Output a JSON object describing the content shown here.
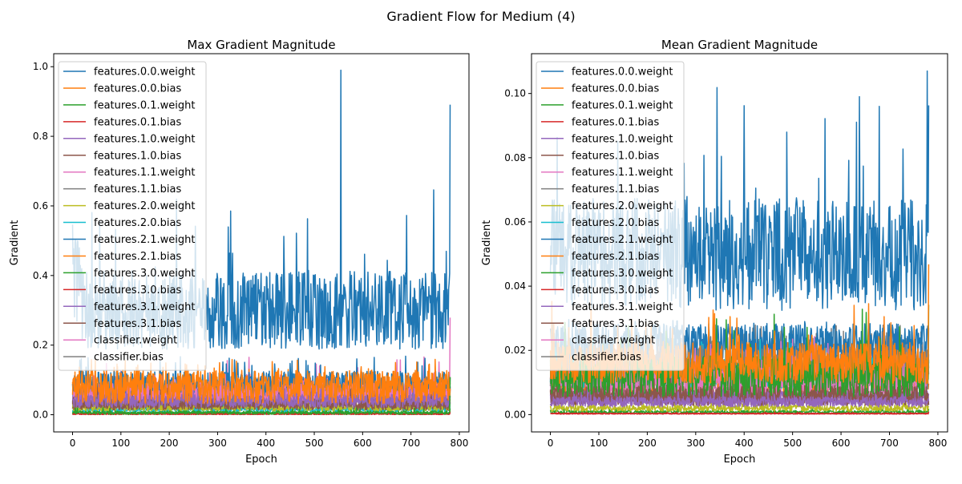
{
  "figure_title": "Gradient Flow for Medium (4)",
  "colors": {
    "palette": [
      "#1f77b4",
      "#ff7f0e",
      "#2ca02c",
      "#d62728",
      "#9467bd",
      "#8c564b",
      "#e377c2",
      "#7f7f7f",
      "#bcbd22",
      "#17becf"
    ]
  },
  "chart_data": [
    {
      "type": "line",
      "title": "Max Gradient Magnitude",
      "xlabel": "Epoch",
      "ylabel": "Gradient",
      "xlim": [
        -39,
        820
      ],
      "ylim": [
        -0.0494,
        1.0374
      ],
      "xticks": [
        0,
        100,
        200,
        300,
        400,
        500,
        600,
        700,
        800
      ],
      "xtick_labels": [
        "0",
        "100",
        "200",
        "300",
        "400",
        "500",
        "600",
        "700",
        "800"
      ],
      "yticks": [
        0.0,
        0.2,
        0.4,
        0.6,
        0.8,
        1.0
      ],
      "ytick_labels": [
        "0.0",
        "0.2",
        "0.4",
        "0.6",
        "0.8",
        "1.0"
      ],
      "grid": false,
      "legend_position": "upper-left",
      "x": {
        "start": 0,
        "end": 781
      },
      "series": [
        {
          "name": "features.0.0.weight",
          "level": 0.3,
          "spread": 0.07,
          "max": 0.99,
          "peak_at": 555
        },
        {
          "name": "features.0.0.bias",
          "level": 0.08,
          "spread": 0.03,
          "max": 0.16
        },
        {
          "name": "features.0.1.weight",
          "level": 0.006,
          "spread": 0.003,
          "max": 0.12
        },
        {
          "name": "features.0.1.bias",
          "level": 0.002,
          "spread": 0.001,
          "max": 0.01
        },
        {
          "name": "features.1.0.weight",
          "level": 0.04,
          "spread": 0.012,
          "max": 0.09
        },
        {
          "name": "features.1.0.bias",
          "level": 0.03,
          "spread": 0.01,
          "max": 0.08
        },
        {
          "name": "features.1.1.weight",
          "level": 0.06,
          "spread": 0.02,
          "max": 0.12
        },
        {
          "name": "features.1.1.bias",
          "level": 0.04,
          "spread": 0.012,
          "max": 0.09
        },
        {
          "name": "features.2.0.weight",
          "level": 0.02,
          "spread": 0.006,
          "max": 0.05
        },
        {
          "name": "features.2.0.bias",
          "level": 0.015,
          "spread": 0.005,
          "max": 0.04
        },
        {
          "name": "features.2.1.weight",
          "level": 0.085,
          "spread": 0.025,
          "max": 0.17
        },
        {
          "name": "features.2.1.bias",
          "level": 0.07,
          "spread": 0.025,
          "max": 0.14
        },
        {
          "name": "features.3.0.weight",
          "level": 0.004,
          "spread": 0.002,
          "max": 0.02
        },
        {
          "name": "features.3.0.bias",
          "level": 0.002,
          "spread": 0.001,
          "max": 0.01
        },
        {
          "name": "features.3.1.weight",
          "level": 0.05,
          "spread": 0.015,
          "max": 0.1
        },
        {
          "name": "features.3.1.bias",
          "level": 0.025,
          "spread": 0.008,
          "max": 0.06
        },
        {
          "name": "classifier.weight",
          "level": 0.065,
          "spread": 0.02,
          "max": 0.31
        },
        {
          "name": "classifier.bias",
          "level": 0.035,
          "spread": 0.012,
          "max": 0.12
        }
      ]
    },
    {
      "type": "line",
      "title": "Mean Gradient Magnitude",
      "xlabel": "Epoch",
      "ylabel": "Gradient",
      "xlim": [
        -39,
        820
      ],
      "ylim": [
        -0.0054,
        0.1124
      ],
      "xticks": [
        0,
        100,
        200,
        300,
        400,
        500,
        600,
        700,
        800
      ],
      "xtick_labels": [
        "0",
        "100",
        "200",
        "300",
        "400",
        "500",
        "600",
        "700",
        "800"
      ],
      "yticks": [
        0.0,
        0.02,
        0.04,
        0.06,
        0.08,
        0.1
      ],
      "ytick_labels": [
        "0.00",
        "0.02",
        "0.04",
        "0.06",
        "0.08",
        "0.10"
      ],
      "grid": false,
      "legend_position": "upper-left",
      "x": {
        "start": 0,
        "end": 781
      },
      "series": [
        {
          "name": "features.0.0.weight",
          "level": 0.05,
          "spread": 0.011,
          "max": 0.107,
          "peak_at": 778
        },
        {
          "name": "features.0.0.bias",
          "level": 0.016,
          "spread": 0.004,
          "max": 0.052
        },
        {
          "name": "features.0.1.weight",
          "level": 0.012,
          "spread": 0.004,
          "max": 0.038
        },
        {
          "name": "features.0.1.bias",
          "level": 0.0003,
          "spread": 0.0001,
          "max": 0.001
        },
        {
          "name": "features.1.0.weight",
          "level": 0.004,
          "spread": 0.001,
          "max": 0.008
        },
        {
          "name": "features.1.0.bias",
          "level": 0.006,
          "spread": 0.002,
          "max": 0.012
        },
        {
          "name": "features.1.1.weight",
          "level": 0.011,
          "spread": 0.003,
          "max": 0.03
        },
        {
          "name": "features.1.1.bias",
          "level": 0.014,
          "spread": 0.004,
          "max": 0.026
        },
        {
          "name": "features.2.0.weight",
          "level": 0.002,
          "spread": 0.0006,
          "max": 0.004
        },
        {
          "name": "features.2.0.bias",
          "level": 0.013,
          "spread": 0.003,
          "max": 0.024
        },
        {
          "name": "features.2.1.weight",
          "level": 0.022,
          "spread": 0.004,
          "max": 0.03
        },
        {
          "name": "features.2.1.bias",
          "level": 0.012,
          "spread": 0.003,
          "max": 0.022
        },
        {
          "name": "features.3.0.weight",
          "level": 0.0008,
          "spread": 0.0003,
          "max": 0.002
        },
        {
          "name": "features.3.0.bias",
          "level": 0.0003,
          "spread": 0.0001,
          "max": 0.001
        },
        {
          "name": "features.3.1.weight",
          "level": 0.005,
          "spread": 0.0015,
          "max": 0.01
        },
        {
          "name": "features.3.1.bias",
          "level": 0.006,
          "spread": 0.002,
          "max": 0.012
        },
        {
          "name": "classifier.weight",
          "level": 0.009,
          "spread": 0.003,
          "max": 0.02
        },
        {
          "name": "classifier.bias",
          "level": 0.016,
          "spread": 0.005,
          "max": 0.028
        }
      ]
    }
  ]
}
